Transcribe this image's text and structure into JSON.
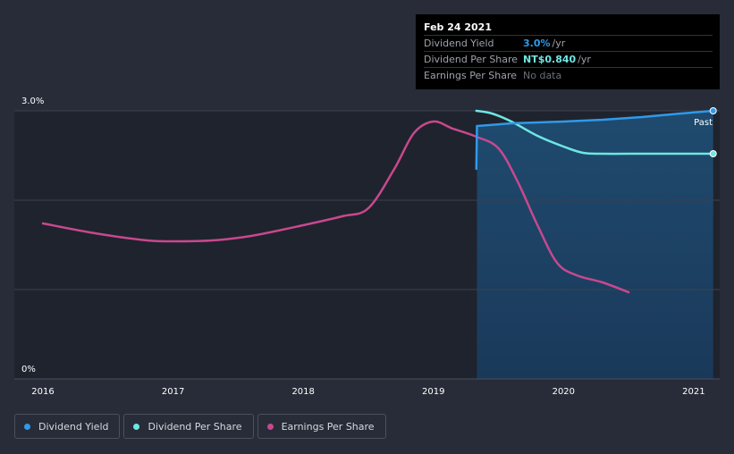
{
  "chart_data": {
    "type": "line",
    "ylabel_top": "3.0%",
    "ylabel_bottom": "0%",
    "x_ticks": [
      "2016",
      "2017",
      "2018",
      "2019",
      "2020",
      "2021"
    ],
    "past_label": "Past",
    "forecast_start": 2019.33,
    "series": [
      {
        "name": "Dividend Yield",
        "color": "#2f9aea",
        "points": [
          [
            2019.33,
            2.35
          ],
          [
            2019.335,
            2.83
          ],
          [
            2019.6,
            2.86
          ],
          [
            2020.0,
            2.88
          ],
          [
            2020.3,
            2.9
          ],
          [
            2020.6,
            2.93
          ],
          [
            2020.9,
            2.97
          ],
          [
            2021.15,
            3.0
          ]
        ]
      },
      {
        "name": "Dividend Per Share",
        "color": "#6ee6e3",
        "points": [
          [
            2019.33,
            3.0
          ],
          [
            2019.45,
            2.97
          ],
          [
            2019.6,
            2.88
          ],
          [
            2019.8,
            2.72
          ],
          [
            2020.0,
            2.6
          ],
          [
            2020.15,
            2.53
          ],
          [
            2020.3,
            2.52
          ],
          [
            2020.6,
            2.52
          ],
          [
            2020.9,
            2.52
          ],
          [
            2021.15,
            2.52
          ]
        ]
      },
      {
        "name": "Earnings Per Share",
        "color": "#c8488f",
        "points": [
          [
            2016.0,
            1.74
          ],
          [
            2016.4,
            1.63
          ],
          [
            2016.8,
            1.55
          ],
          [
            2017.0,
            1.54
          ],
          [
            2017.3,
            1.55
          ],
          [
            2017.6,
            1.6
          ],
          [
            2018.0,
            1.72
          ],
          [
            2018.3,
            1.82
          ],
          [
            2018.5,
            1.91
          ],
          [
            2018.7,
            2.35
          ],
          [
            2018.85,
            2.75
          ],
          [
            2019.0,
            2.88
          ],
          [
            2019.15,
            2.8
          ],
          [
            2019.33,
            2.71
          ],
          [
            2019.5,
            2.58
          ],
          [
            2019.65,
            2.2
          ],
          [
            2019.8,
            1.72
          ],
          [
            2019.95,
            1.3
          ],
          [
            2020.1,
            1.16
          ],
          [
            2020.3,
            1.08
          ],
          [
            2020.5,
            0.97
          ]
        ]
      }
    ],
    "xlim": [
      2015.78,
      2021.2
    ],
    "ylim": [
      0,
      3.0
    ]
  },
  "tooltip": {
    "date": "Feb 24 2021",
    "rows": [
      {
        "label": "Dividend Yield",
        "value": "3.0%",
        "unit": "/yr",
        "color": "#2f9aea"
      },
      {
        "label": "Dividend Per Share",
        "value": "NT$0.840",
        "unit": "/yr",
        "color": "#6ee6e3"
      },
      {
        "label": "Earnings Per Share",
        "value": "No data",
        "unit": "",
        "color": "#6b6f76"
      }
    ]
  },
  "legend": [
    {
      "label": "Dividend Yield",
      "color": "#2f9aea"
    },
    {
      "label": "Dividend Per Share",
      "color": "#6ee6e3"
    },
    {
      "label": "Earnings Per Share",
      "color": "#c8488f"
    }
  ]
}
